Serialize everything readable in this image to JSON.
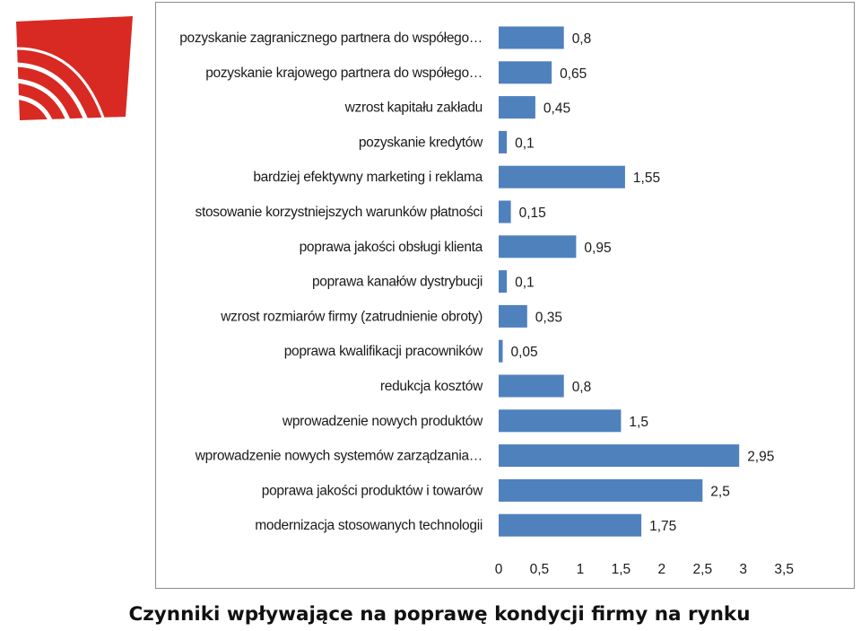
{
  "chart_data": {
    "type": "bar",
    "orientation": "horizontal",
    "title": "Czynniki wpływające na poprawę kondycji firmy na rynku",
    "categories": [
      "pozyskanie zagranicznego partnera do współego…",
      "pozyskanie krajowego partnera do współego…",
      "wzrost kapitału zakładu",
      "pozyskanie kredytów",
      "bardziej efektywny marketing i reklama",
      "stosowanie korzystniejszych warunków płatności",
      "poprawa jakości obsługi klienta",
      "poprawa kanałów dystrybucji",
      "wzrost rozmiarów firmy (zatrudnienie obroty)",
      "poprawa kwalifikacji pracowników",
      "redukcja kosztów",
      "wprowadzenie nowych produktów",
      "wprowadzenie nowych systemów zarządzania…",
      "poprawa jakości produktów i towarów",
      "modernizacja stosowanych technologii"
    ],
    "values": [
      0.8,
      0.65,
      0.45,
      0.1,
      1.55,
      0.15,
      0.95,
      0.1,
      0.35,
      0.05,
      0.8,
      1.5,
      2.95,
      2.5,
      1.75
    ],
    "value_labels": [
      "0,8",
      "0,65",
      "0,45",
      "0,1",
      "1,55",
      "0,15",
      "0,95",
      "0,1",
      "0,35",
      "0,05",
      "0,8",
      "1,5",
      "2,95",
      "2,5",
      "1,75"
    ],
    "xlim": [
      0,
      3.5
    ],
    "x_ticks": [
      0,
      0.5,
      1,
      1.5,
      2,
      2.5,
      3,
      3.5
    ],
    "x_tick_labels": [
      "0",
      "0,5",
      "1",
      "1,5",
      "2",
      "2,5",
      "3",
      "3,5"
    ],
    "grid": false,
    "legend": "none",
    "bar_color": "#4f81bd"
  },
  "logo": {
    "colors": [
      "#d82a22",
      "#ffffff"
    ],
    "icon": "red-shield-logo"
  }
}
